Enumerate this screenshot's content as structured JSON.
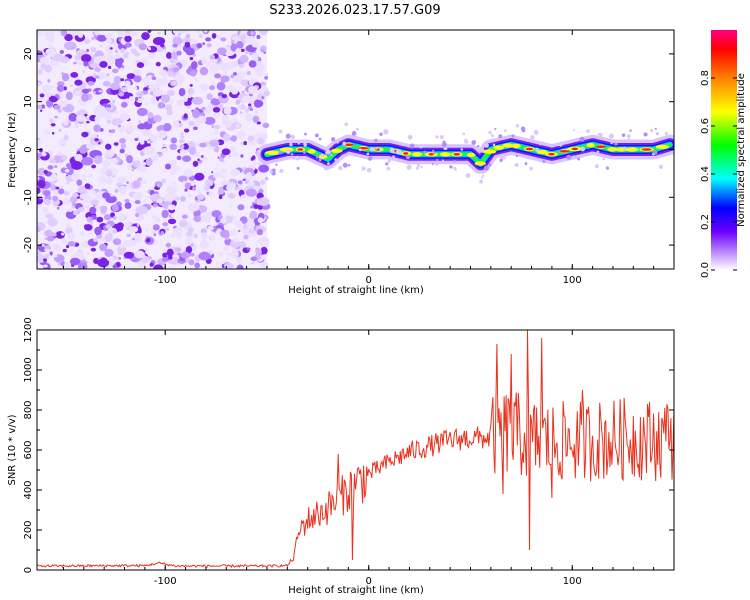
{
  "title": "S233.2026.023.17.57.G09",
  "colors": {
    "snr_line": "#e8321e",
    "frame": "#000000"
  },
  "chart_data": [
    {
      "type": "heatmap",
      "name": "spectrogram",
      "xlabel": "Height of straight line (km)",
      "ylabel": "Frequency (Hz)",
      "xlim": [
        -163,
        150
      ],
      "ylim": [
        -25,
        25
      ],
      "xticks": [
        -100,
        0,
        100
      ],
      "xtick_labels": [
        "-100",
        "0",
        "100"
      ],
      "yticks": [
        -20,
        -10,
        0,
        10,
        20
      ],
      "ytick_labels": [
        "-20",
        "-10",
        "0",
        "10",
        "20"
      ],
      "noise_region_x": [
        -163,
        -50
      ],
      "ridge": {
        "x": [
          -50,
          -40,
          -30,
          -20,
          -15,
          -10,
          0,
          10,
          20,
          30,
          40,
          50,
          55,
          60,
          70,
          80,
          90,
          100,
          110,
          120,
          130,
          140,
          148
        ],
        "freq": [
          -1,
          0,
          0,
          -2,
          0,
          1,
          0,
          0,
          -1,
          -1,
          -1,
          -1,
          -3,
          0,
          1,
          0,
          -1,
          0,
          1,
          0,
          0,
          0,
          1
        ]
      },
      "colorbar": {
        "label": "Normalized spectral amplitude",
        "range": [
          0,
          1
        ],
        "ticks": [
          0.0,
          0.2,
          0.4,
          0.6,
          0.8
        ],
        "tick_labels": [
          "0.0",
          "0.2",
          "0.4",
          "0.6",
          "0.8"
        ]
      }
    },
    {
      "type": "line",
      "name": "snr",
      "xlabel": "Height of straight line (km)",
      "ylabel": "SNR (10 * v/v)",
      "xlim": [
        -163,
        150
      ],
      "ylim": [
        0,
        1200
      ],
      "xticks": [
        -100,
        0,
        100
      ],
      "xtick_labels": [
        "-100",
        "0",
        "100"
      ],
      "yticks": [
        0,
        200,
        400,
        600,
        800,
        1000,
        1200
      ],
      "ytick_labels": [
        "0",
        "200",
        "400",
        "600",
        "800",
        "1000",
        "1200"
      ],
      "envelope": {
        "x": [
          -163,
          -110,
          -103,
          -95,
          -50,
          -40,
          -37,
          -34,
          -30,
          -20,
          -10,
          0,
          10,
          20,
          30,
          40,
          50,
          60,
          62,
          70,
          80,
          90,
          100,
          110,
          120,
          130,
          140,
          150
        ],
        "y": [
          20,
          22,
          35,
          20,
          20,
          22,
          60,
          200,
          250,
          310,
          400,
          480,
          540,
          590,
          620,
          650,
          660,
          660,
          680,
          690,
          650,
          640,
          640,
          650,
          650,
          660,
          650,
          660
        ]
      },
      "spikes": [
        {
          "x": -15,
          "y": 580
        },
        {
          "x": -8,
          "y": 50
        },
        {
          "x": 63,
          "y": 1130
        },
        {
          "x": 66,
          "y": 380
        },
        {
          "x": 70,
          "y": 1080
        },
        {
          "x": 78,
          "y": 1200
        },
        {
          "x": 79,
          "y": 100
        },
        {
          "x": 85,
          "y": 1160
        },
        {
          "x": 90,
          "y": 360
        },
        {
          "x": 105,
          "y": 900
        },
        {
          "x": 147,
          "y": 810
        }
      ]
    }
  ]
}
